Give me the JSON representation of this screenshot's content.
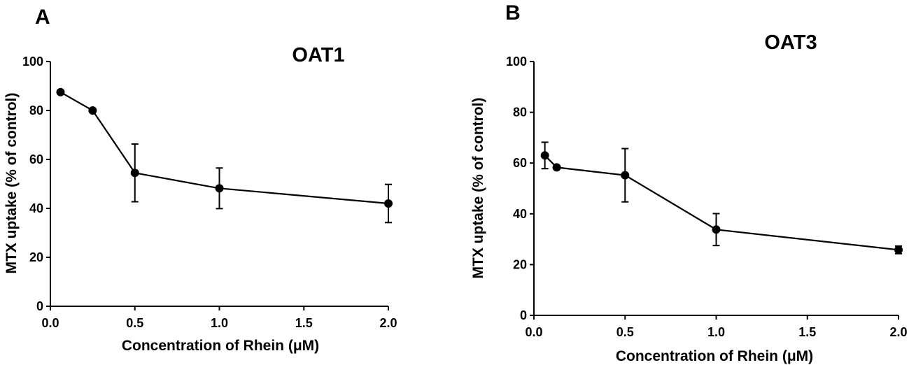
{
  "chart_data": [
    {
      "type": "line",
      "panel_label": "A",
      "title": "OAT1",
      "xlabel": "Concentration of Rhein (μM)",
      "ylabel": "MTX uptake (% of control)",
      "xlim": [
        0,
        2
      ],
      "ylim": [
        0,
        100
      ],
      "xticks": [
        "0.0",
        "0.5",
        "1.0",
        "1.5",
        "2.0"
      ],
      "yticks": [
        "0",
        "20",
        "40",
        "60",
        "80",
        "100"
      ],
      "xtick_values": [
        0,
        0.5,
        1,
        1.5,
        2
      ],
      "ytick_values": [
        0,
        20,
        40,
        60,
        80,
        100
      ],
      "grid": false,
      "series": [
        {
          "x": [
            0.06,
            0.25,
            0.5,
            1.0,
            2.0
          ],
          "y": [
            87.5,
            80,
            54.5,
            48.2,
            42
          ],
          "err": [
            0,
            0,
            11.8,
            8.3,
            7.8
          ]
        }
      ]
    },
    {
      "type": "line",
      "panel_label": "B",
      "title": "OAT3",
      "xlabel": "Concentration of Rhein (μM)",
      "ylabel": "MTX uptake (% of control)",
      "xlim": [
        0,
        2
      ],
      "ylim": [
        0,
        100
      ],
      "xticks": [
        "0.0",
        "0.5",
        "1.0",
        "1.5",
        "2.0"
      ],
      "yticks": [
        "0",
        "20",
        "40",
        "60",
        "80",
        "100"
      ],
      "xtick_values": [
        0,
        0.5,
        1,
        1.5,
        2
      ],
      "ytick_values": [
        0,
        20,
        40,
        60,
        80,
        100
      ],
      "grid": false,
      "series": [
        {
          "x": [
            0.06,
            0.125,
            0.5,
            1.0,
            2.0
          ],
          "y": [
            63,
            58.3,
            55.2,
            33.8,
            25.8
          ],
          "err": [
            5.2,
            0,
            10.5,
            6.3,
            1.5
          ]
        }
      ]
    }
  ]
}
